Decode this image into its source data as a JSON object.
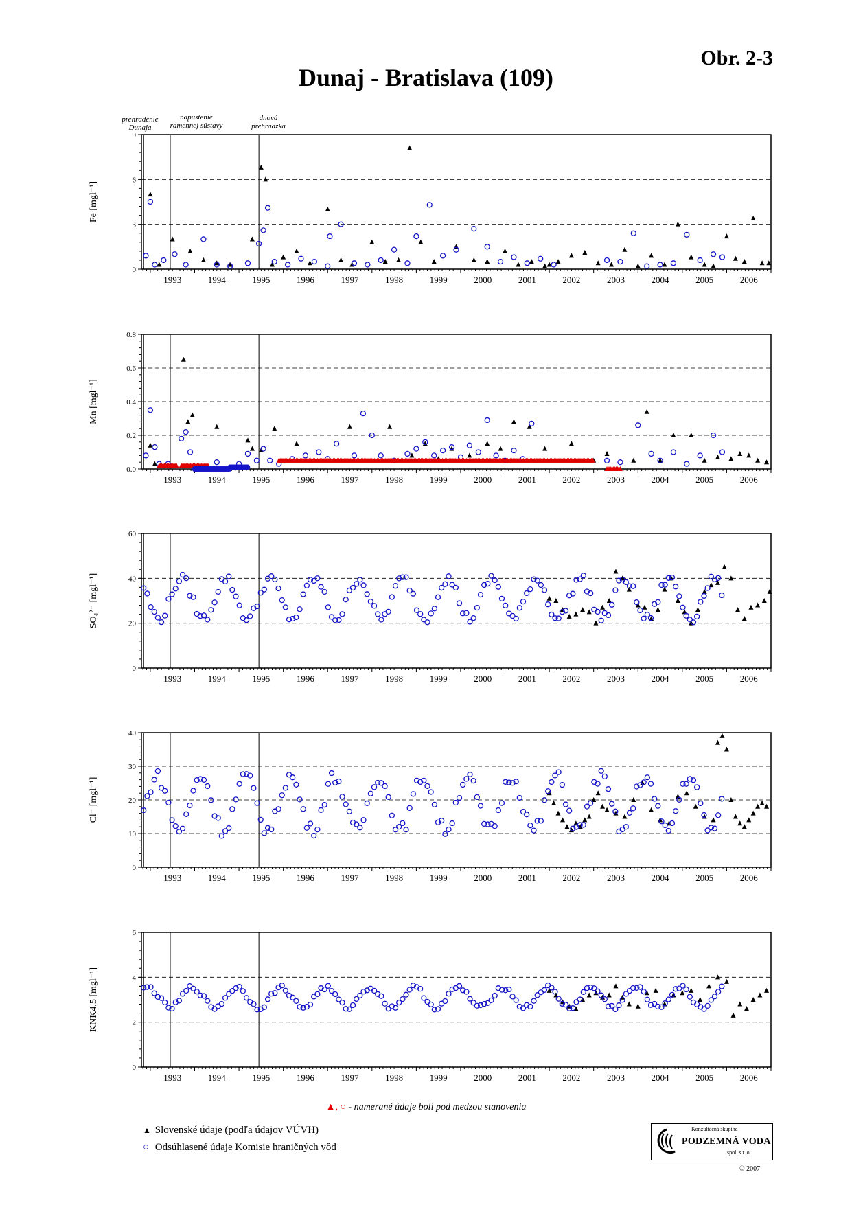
{
  "figure_label": "Obr. 2-3",
  "title": "Dunaj - Bratislava (109)",
  "events": [
    {
      "label_line1": "prehradenie",
      "label_line2": "Dunaja",
      "year": 1992.85
    },
    {
      "label_line1": "napustenie",
      "label_line2": "ramennej sústavy",
      "year": 1993.45
    },
    {
      "label_line1": "dnová",
      "label_line2": "prehrádzka",
      "year": 1995.45
    }
  ],
  "below_note": {
    "symbols": "▲, ○",
    "text": " - namerané údaje boli pod medzou stanovenia"
  },
  "legend": [
    {
      "symbol": "▲",
      "label": "Slovenské údaje (podľa údajov VÚVH)",
      "color": "#000000"
    },
    {
      "symbol": "○",
      "label": "Odsúhlasené údaje Komisie hraničných vôd",
      "color": "#1414c8"
    }
  ],
  "logo": {
    "top": "Konzultačná skupina",
    "name": "PODZEMNÁ VODA",
    "sub": "spol. s r. o."
  },
  "copyright": "© 2007",
  "colors": {
    "slovak": "#000000",
    "commission": "#1414c8",
    "below_limit": "#e00000",
    "grid": "#000000"
  },
  "chart_data": [
    {
      "type": "scatter",
      "ylabel": "Fe [mgl⁻¹]",
      "ylim": [
        0,
        9
      ],
      "yticks": [
        0,
        3,
        6,
        9
      ],
      "dashed_grid": [
        3,
        6
      ],
      "xlim": [
        1992.8,
        2007.0
      ],
      "xtick_labels": [
        "1993",
        "1994",
        "1995",
        "1996",
        "1997",
        "1998",
        "1999",
        "2000",
        "2001",
        "2002",
        "2003",
        "2004",
        "2005",
        "2006"
      ],
      "series": [
        {
          "name": "Slovenské údaje (podľa údajov VÚVH)",
          "marker": "triangle",
          "x": [
            1993.0,
            1993.2,
            1993.5,
            1993.9,
            1994.2,
            1994.5,
            1994.8,
            1995.3,
            1995.5,
            1995.6,
            1995.75,
            1996.0,
            1996.3,
            1996.6,
            1997.0,
            1997.3,
            1997.55,
            1998.0,
            1998.3,
            1998.6,
            1998.85,
            1999.1,
            1999.4,
            1999.9,
            2000.3,
            2000.6,
            2001.0,
            2001.3,
            2001.6,
            2001.9,
            2002.0,
            2002.2,
            2002.5,
            2002.8,
            2003.1,
            2003.4,
            2003.7,
            2004.0,
            2004.3,
            2004.6,
            2004.9,
            2005.2,
            2005.5,
            2005.7,
            2006.0,
            2006.2,
            2006.4,
            2006.6,
            2006.8,
            2006.95
          ],
          "y": [
            5.0,
            0.3,
            2.0,
            1.2,
            0.6,
            0.4,
            0.3,
            2.0,
            6.8,
            6.0,
            0.3,
            0.8,
            1.2,
            0.4,
            4.0,
            0.6,
            0.3,
            1.8,
            0.5,
            0.6,
            8.1,
            1.8,
            0.5,
            1.5,
            0.6,
            0.5,
            1.2,
            0.3,
            0.5,
            0.2,
            0.3,
            0.5,
            0.9,
            1.1,
            0.4,
            0.3,
            1.3,
            0.2,
            0.9,
            0.3,
            3.0,
            0.8,
            0.3,
            0.2,
            2.2,
            0.7,
            0.5,
            3.4,
            0.4,
            0.4
          ]
        },
        {
          "name": "Odsúhlasené údaje Komisie hraničných vôd",
          "marker": "circle",
          "x": [
            1992.9,
            1993.0,
            1993.1,
            1993.3,
            1993.55,
            1993.8,
            1994.2,
            1994.5,
            1994.8,
            1995.2,
            1995.45,
            1995.55,
            1995.65,
            1995.8,
            1996.1,
            1996.4,
            1996.7,
            1997.0,
            1997.05,
            1997.3,
            1997.6,
            1997.9,
            1998.2,
            1998.5,
            1998.8,
            1999.0,
            1999.3,
            1999.6,
            1999.9,
            2000.3,
            2000.6,
            2000.9,
            2001.2,
            2001.5,
            2001.8,
            2002.1,
            2003.3,
            2003.6,
            2003.9,
            2004.2,
            2004.5,
            2004.8,
            2005.1,
            2005.4,
            2005.7,
            2005.9
          ],
          "y": [
            0.9,
            4.5,
            0.3,
            0.6,
            1.0,
            0.3,
            2.0,
            0.3,
            0.2,
            0.4,
            1.7,
            2.6,
            4.1,
            0.5,
            0.3,
            0.7,
            0.5,
            0.2,
            2.2,
            3.0,
            0.4,
            0.3,
            0.6,
            1.3,
            0.4,
            2.2,
            4.3,
            0.9,
            1.3,
            2.7,
            1.5,
            0.5,
            0.8,
            0.4,
            0.7,
            0.3,
            0.6,
            0.5,
            2.4,
            0.2,
            0.3,
            0.4,
            2.3,
            0.6,
            1.0,
            0.8
          ]
        }
      ]
    },
    {
      "type": "scatter",
      "ylabel": "Mn [mgl⁻¹]",
      "ylim": [
        0,
        0.8
      ],
      "yticks": [
        0.0,
        0.2,
        0.4,
        0.6,
        0.8
      ],
      "dashed_grid": [
        0.2,
        0.4,
        0.6
      ],
      "xlim": [
        1992.8,
        2007.0
      ],
      "xtick_labels": [
        "1993",
        "1994",
        "1995",
        "1996",
        "1997",
        "1998",
        "1999",
        "2000",
        "2001",
        "2002",
        "2003",
        "2004",
        "2005",
        "2006"
      ],
      "series": [
        {
          "name": "Slovenské údaje (podľa údajov VÚVH)",
          "marker": "triangle",
          "x": [
            1993.0,
            1993.1,
            1993.75,
            1993.85,
            1993.95,
            1994.5,
            1995.2,
            1995.3,
            1995.5,
            1995.8,
            1996.3,
            1996.6,
            1997.5,
            1998.4,
            1998.9,
            1999.2,
            1999.5,
            1999.8,
            2000.2,
            2000.6,
            2000.9,
            2001.2,
            2001.55,
            2001.7,
            2001.9,
            2002.5,
            2003.0,
            2003.3,
            2003.9,
            2004.2,
            2004.5,
            2004.8,
            2005.2,
            2005.5,
            2005.8,
            2006.1,
            2006.3,
            2006.5,
            2006.7,
            2006.9
          ],
          "y": [
            0.14,
            0.03,
            0.65,
            0.28,
            0.32,
            0.25,
            0.17,
            0.12,
            0.11,
            0.24,
            0.15,
            0.05,
            0.25,
            0.25,
            0.08,
            0.15,
            0.06,
            0.12,
            0.08,
            0.15,
            0.12,
            0.28,
            0.25,
            0.05,
            0.12,
            0.15,
            0.05,
            0.09,
            0.05,
            0.34,
            0.05,
            0.2,
            0.2,
            0.05,
            0.07,
            0.06,
            0.09,
            0.08,
            0.05,
            0.04
          ]
        },
        {
          "name": "Odsúhlasené údaje Komisie hraničných vôd",
          "marker": "circle",
          "x": [
            1992.9,
            1993.0,
            1993.1,
            1993.2,
            1993.4,
            1993.7,
            1993.8,
            1993.9,
            1994.5,
            1995.0,
            1995.2,
            1995.4,
            1995.55,
            1995.7,
            1995.9,
            1996.2,
            1996.5,
            1996.8,
            1997.0,
            1997.2,
            1997.6,
            1997.8,
            1998.0,
            1998.2,
            1998.5,
            1998.8,
            1999.0,
            1999.2,
            1999.4,
            1999.6,
            1999.8,
            2000.0,
            2000.2,
            2000.4,
            2000.6,
            2000.8,
            2001.0,
            2001.2,
            2001.4,
            2001.6,
            2003.3,
            2003.6,
            2004.0,
            2004.3,
            2004.5,
            2004.8,
            2005.1,
            2005.4,
            2005.7,
            2005.9
          ],
          "y": [
            0.08,
            0.35,
            0.13,
            0.03,
            0.03,
            0.18,
            0.22,
            0.1,
            0.04,
            0.03,
            0.09,
            0.05,
            0.12,
            0.05,
            0.03,
            0.06,
            0.08,
            0.1,
            0.06,
            0.15,
            0.08,
            0.33,
            0.2,
            0.08,
            0.05,
            0.09,
            0.12,
            0.16,
            0.08,
            0.11,
            0.13,
            0.07,
            0.14,
            0.1,
            0.29,
            0.08,
            0.05,
            0.11,
            0.06,
            0.27,
            0.05,
            0.04,
            0.26,
            0.09,
            0.05,
            0.1,
            0.03,
            0.08,
            0.2,
            0.1
          ]
        },
        {
          "name": "",
          "marker": "red-triangle",
          "ranges": [
            {
              "from": 1993.2,
              "to": 1993.6,
              "y": 0.02
            },
            {
              "from": 1993.7,
              "to": 1994.3,
              "y": 0.02
            },
            {
              "from": 1995.9,
              "to": 2003.0,
              "y": 0.05
            },
            {
              "from": 2003.3,
              "to": 2003.6,
              "y": 0.0
            }
          ]
        },
        {
          "name": "",
          "marker": "blue-filled",
          "ranges": [
            {
              "from": 1994.0,
              "to": 1994.8,
              "y": 0.0
            },
            {
              "from": 1994.8,
              "to": 1995.2,
              "y": 0.01
            }
          ]
        }
      ]
    },
    {
      "type": "scatter",
      "ylabel": "SO₄²⁻ [mgl⁻¹]",
      "ylim": [
        0,
        60
      ],
      "yticks": [
        0,
        20,
        40,
        60
      ],
      "dashed_grid": [
        20,
        40
      ],
      "xlim": [
        1992.8,
        2007.0
      ],
      "xtick_labels": [
        "1993",
        "1994",
        "1995",
        "1996",
        "1997",
        "1998",
        "1999",
        "2000",
        "2001",
        "2002",
        "2003",
        "2004",
        "2005",
        "2006"
      ],
      "series": [
        {
          "name": "Slovenské údaje (podľa údajov VÚVH)",
          "marker": "triangle",
          "x": [
            2002.0,
            2002.15,
            2002.3,
            2002.45,
            2002.6,
            2002.75,
            2002.9,
            2003.05,
            2003.2,
            2003.35,
            2003.5,
            2003.65,
            2003.8,
            2004.0,
            2004.15,
            2004.3,
            2004.45,
            2004.6,
            2004.75,
            2004.9,
            2005.05,
            2005.2,
            2005.35,
            2005.5,
            2005.65,
            2005.8,
            2005.95,
            2006.1,
            2006.25,
            2006.4,
            2006.55,
            2006.7,
            2006.85,
            2006.97
          ],
          "y": [
            31,
            30,
            26,
            23,
            24,
            26,
            25,
            20,
            27,
            30,
            43,
            40,
            35,
            28,
            27,
            22,
            26,
            35,
            40,
            30,
            25,
            20,
            26,
            34,
            37,
            38,
            45,
            40,
            26,
            22,
            27,
            28,
            30,
            34
          ]
        },
        {
          "name": "Odsúhlasené údaje Komisie hraničných vôd",
          "marker": "circle",
          "fn": "seasonal",
          "mean": 31,
          "amp": 9,
          "phase": 0.55,
          "from": 1992.85,
          "to": 2005.9,
          "step": 0.08
        }
      ]
    },
    {
      "type": "scatter",
      "ylabel": "Cl⁻ [mgl⁻¹]",
      "ylim": [
        0,
        40
      ],
      "yticks": [
        0,
        10,
        20,
        30,
        40
      ],
      "dashed_grid": [
        10,
        20,
        30
      ],
      "xlim": [
        1992.8,
        2007.0
      ],
      "xtick_labels": [
        "1993",
        "1994",
        "1995",
        "1996",
        "1997",
        "1998",
        "1999",
        "2000",
        "2001",
        "2002",
        "2003",
        "2004",
        "2005",
        "2006"
      ],
      "series": [
        {
          "name": "Slovenské údaje (podľa údajov VÚVH)",
          "marker": "triangle",
          "x": [
            2002.0,
            2002.1,
            2002.2,
            2002.3,
            2002.4,
            2002.5,
            2002.6,
            2002.7,
            2002.8,
            2002.9,
            2003.0,
            2003.1,
            2003.2,
            2003.3,
            2003.5,
            2003.7,
            2003.9,
            2004.1,
            2004.3,
            2004.5,
            2004.7,
            2004.9,
            2005.1,
            2005.3,
            2005.5,
            2005.7,
            2005.8,
            2005.9,
            2006.0,
            2006.1,
            2006.2,
            2006.3,
            2006.4,
            2006.5,
            2006.6,
            2006.7,
            2006.8,
            2006.9
          ],
          "y": [
            22,
            19,
            16,
            14,
            12,
            11,
            13,
            12,
            14,
            15,
            20,
            22,
            18,
            17,
            16,
            15,
            20,
            25,
            17,
            14,
            13,
            21,
            22,
            18,
            15,
            14,
            37,
            39,
            35,
            20,
            15,
            13,
            12,
            14,
            16,
            18,
            19,
            18
          ]
        },
        {
          "name": "Odsúhlasené údaje Komisie hraničných vôd",
          "marker": "circle",
          "fn": "seasonal",
          "mean": 19,
          "amp": 8,
          "phase": 0.1,
          "from": 1992.85,
          "to": 2005.9,
          "step": 0.08
        }
      ]
    },
    {
      "type": "scatter",
      "ylabel": "KNK4,5 [mgl⁻¹]",
      "ylim": [
        0,
        6
      ],
      "yticks": [
        0,
        2,
        4,
        6
      ],
      "dashed_grid": [
        2,
        4
      ],
      "xlim": [
        1992.8,
        2007.0
      ],
      "xtick_labels": [
        "1993",
        "1994",
        "1995",
        "1996",
        "1997",
        "1998",
        "1999",
        "2000",
        "2001",
        "2002",
        "2003",
        "2004",
        "2005",
        "2006"
      ],
      "series": [
        {
          "name": "Slovenské údaje (podľa údajov VÚVH)",
          "marker": "triangle",
          "x": [
            2002.0,
            2002.15,
            2002.3,
            2002.45,
            2002.6,
            2002.75,
            2002.9,
            2003.05,
            2003.2,
            2003.35,
            2003.5,
            2003.65,
            2003.8,
            2004.0,
            2004.2,
            2004.4,
            2004.6,
            2004.8,
            2005.0,
            2005.2,
            2005.4,
            2005.6,
            2005.8,
            2006.0,
            2006.15,
            2006.3,
            2006.45,
            2006.6,
            2006.75,
            2006.9
          ],
          "y": [
            3.4,
            3.2,
            2.9,
            2.7,
            2.6,
            3.0,
            3.2,
            3.3,
            3.1,
            3.2,
            3.6,
            3.1,
            2.8,
            2.7,
            3.3,
            3.4,
            2.8,
            3.2,
            3.3,
            3.4,
            3.0,
            3.6,
            4.0,
            3.8,
            2.3,
            2.8,
            2.6,
            3.0,
            3.2,
            3.4
          ]
        },
        {
          "name": "Odsúhlasené údaje Komisie hraničných vôd",
          "marker": "circle",
          "fn": "seasonal",
          "mean": 3.1,
          "amp": 0.45,
          "phase": 0.3,
          "from": 1992.85,
          "to": 2005.9,
          "step": 0.08
        }
      ]
    }
  ]
}
